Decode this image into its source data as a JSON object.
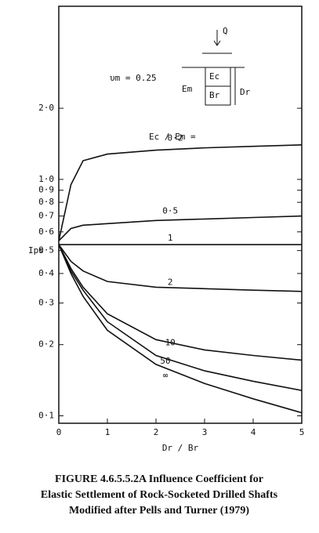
{
  "chart_data": {
    "type": "line",
    "annotation": "υm = 0.25",
    "series_label": "Ec / Em =",
    "ylabel": "Ips",
    "xlabel": "Dr / Br",
    "diagram": {
      "load": "Q",
      "shaft_modulus": "Ec",
      "mass_modulus": "Em",
      "diameter": "Br",
      "depth": "Dr"
    },
    "x": [
      0,
      0.25,
      0.5,
      1,
      2,
      3,
      4,
      5
    ],
    "series": [
      {
        "name": "0·2",
        "color": "#111111",
        "values": [
          0.55,
          0.95,
          1.2,
          1.28,
          1.33,
          1.36,
          1.38,
          1.4
        ]
      },
      {
        "name": "0·5",
        "color": "#111111",
        "values": [
          0.55,
          0.62,
          0.64,
          0.65,
          0.67,
          0.68,
          0.69,
          0.7
        ]
      },
      {
        "name": "1",
        "color": "#111111",
        "values": [
          0.53,
          0.53,
          0.53,
          0.53,
          0.53,
          0.53,
          0.53,
          0.53
        ]
      },
      {
        "name": "2",
        "color": "#111111",
        "values": [
          0.53,
          0.45,
          0.41,
          0.37,
          0.35,
          0.345,
          0.34,
          0.336
        ]
      },
      {
        "name": "10",
        "color": "#111111",
        "values": [
          0.53,
          0.42,
          0.35,
          0.27,
          0.21,
          0.19,
          0.18,
          0.172
        ]
      },
      {
        "name": "50",
        "color": "#111111",
        "values": [
          0.53,
          0.41,
          0.34,
          0.25,
          0.18,
          0.155,
          0.14,
          0.128
        ]
      },
      {
        "name": "∞",
        "color": "#111111",
        "values": [
          0.53,
          0.4,
          0.32,
          0.23,
          0.165,
          0.137,
          0.118,
          0.103
        ]
      }
    ],
    "xlim": [
      0,
      5
    ],
    "xticks": [
      0,
      1,
      2,
      3,
      4,
      5
    ],
    "ylim": [
      0.093,
      5.4
    ],
    "log_y": true,
    "yticks": [
      {
        "value": 0.1,
        "label": "0·1"
      },
      {
        "value": 0.2,
        "label": "0·2"
      },
      {
        "value": 0.3,
        "label": "0·3"
      },
      {
        "value": 0.4,
        "label": "0·4"
      },
      {
        "value": 0.5,
        "label": "0·5"
      },
      {
        "value": 0.6,
        "label": "0·6"
      },
      {
        "value": 0.7,
        "label": "0·7"
      },
      {
        "value": 0.8,
        "label": "0·8"
      },
      {
        "value": 0.9,
        "label": "0·9"
      },
      {
        "value": 1.0,
        "label": "1·0"
      },
      {
        "value": 2.0,
        "label": "2·0"
      }
    ],
    "caption": [
      "FIGURE 4.6.5.5.2A    Influence Coefficient for",
      "Elastic Settlement of Rock-Socketed Drilled Shafts",
      "Modified after Pells and Turner (1979)"
    ]
  }
}
